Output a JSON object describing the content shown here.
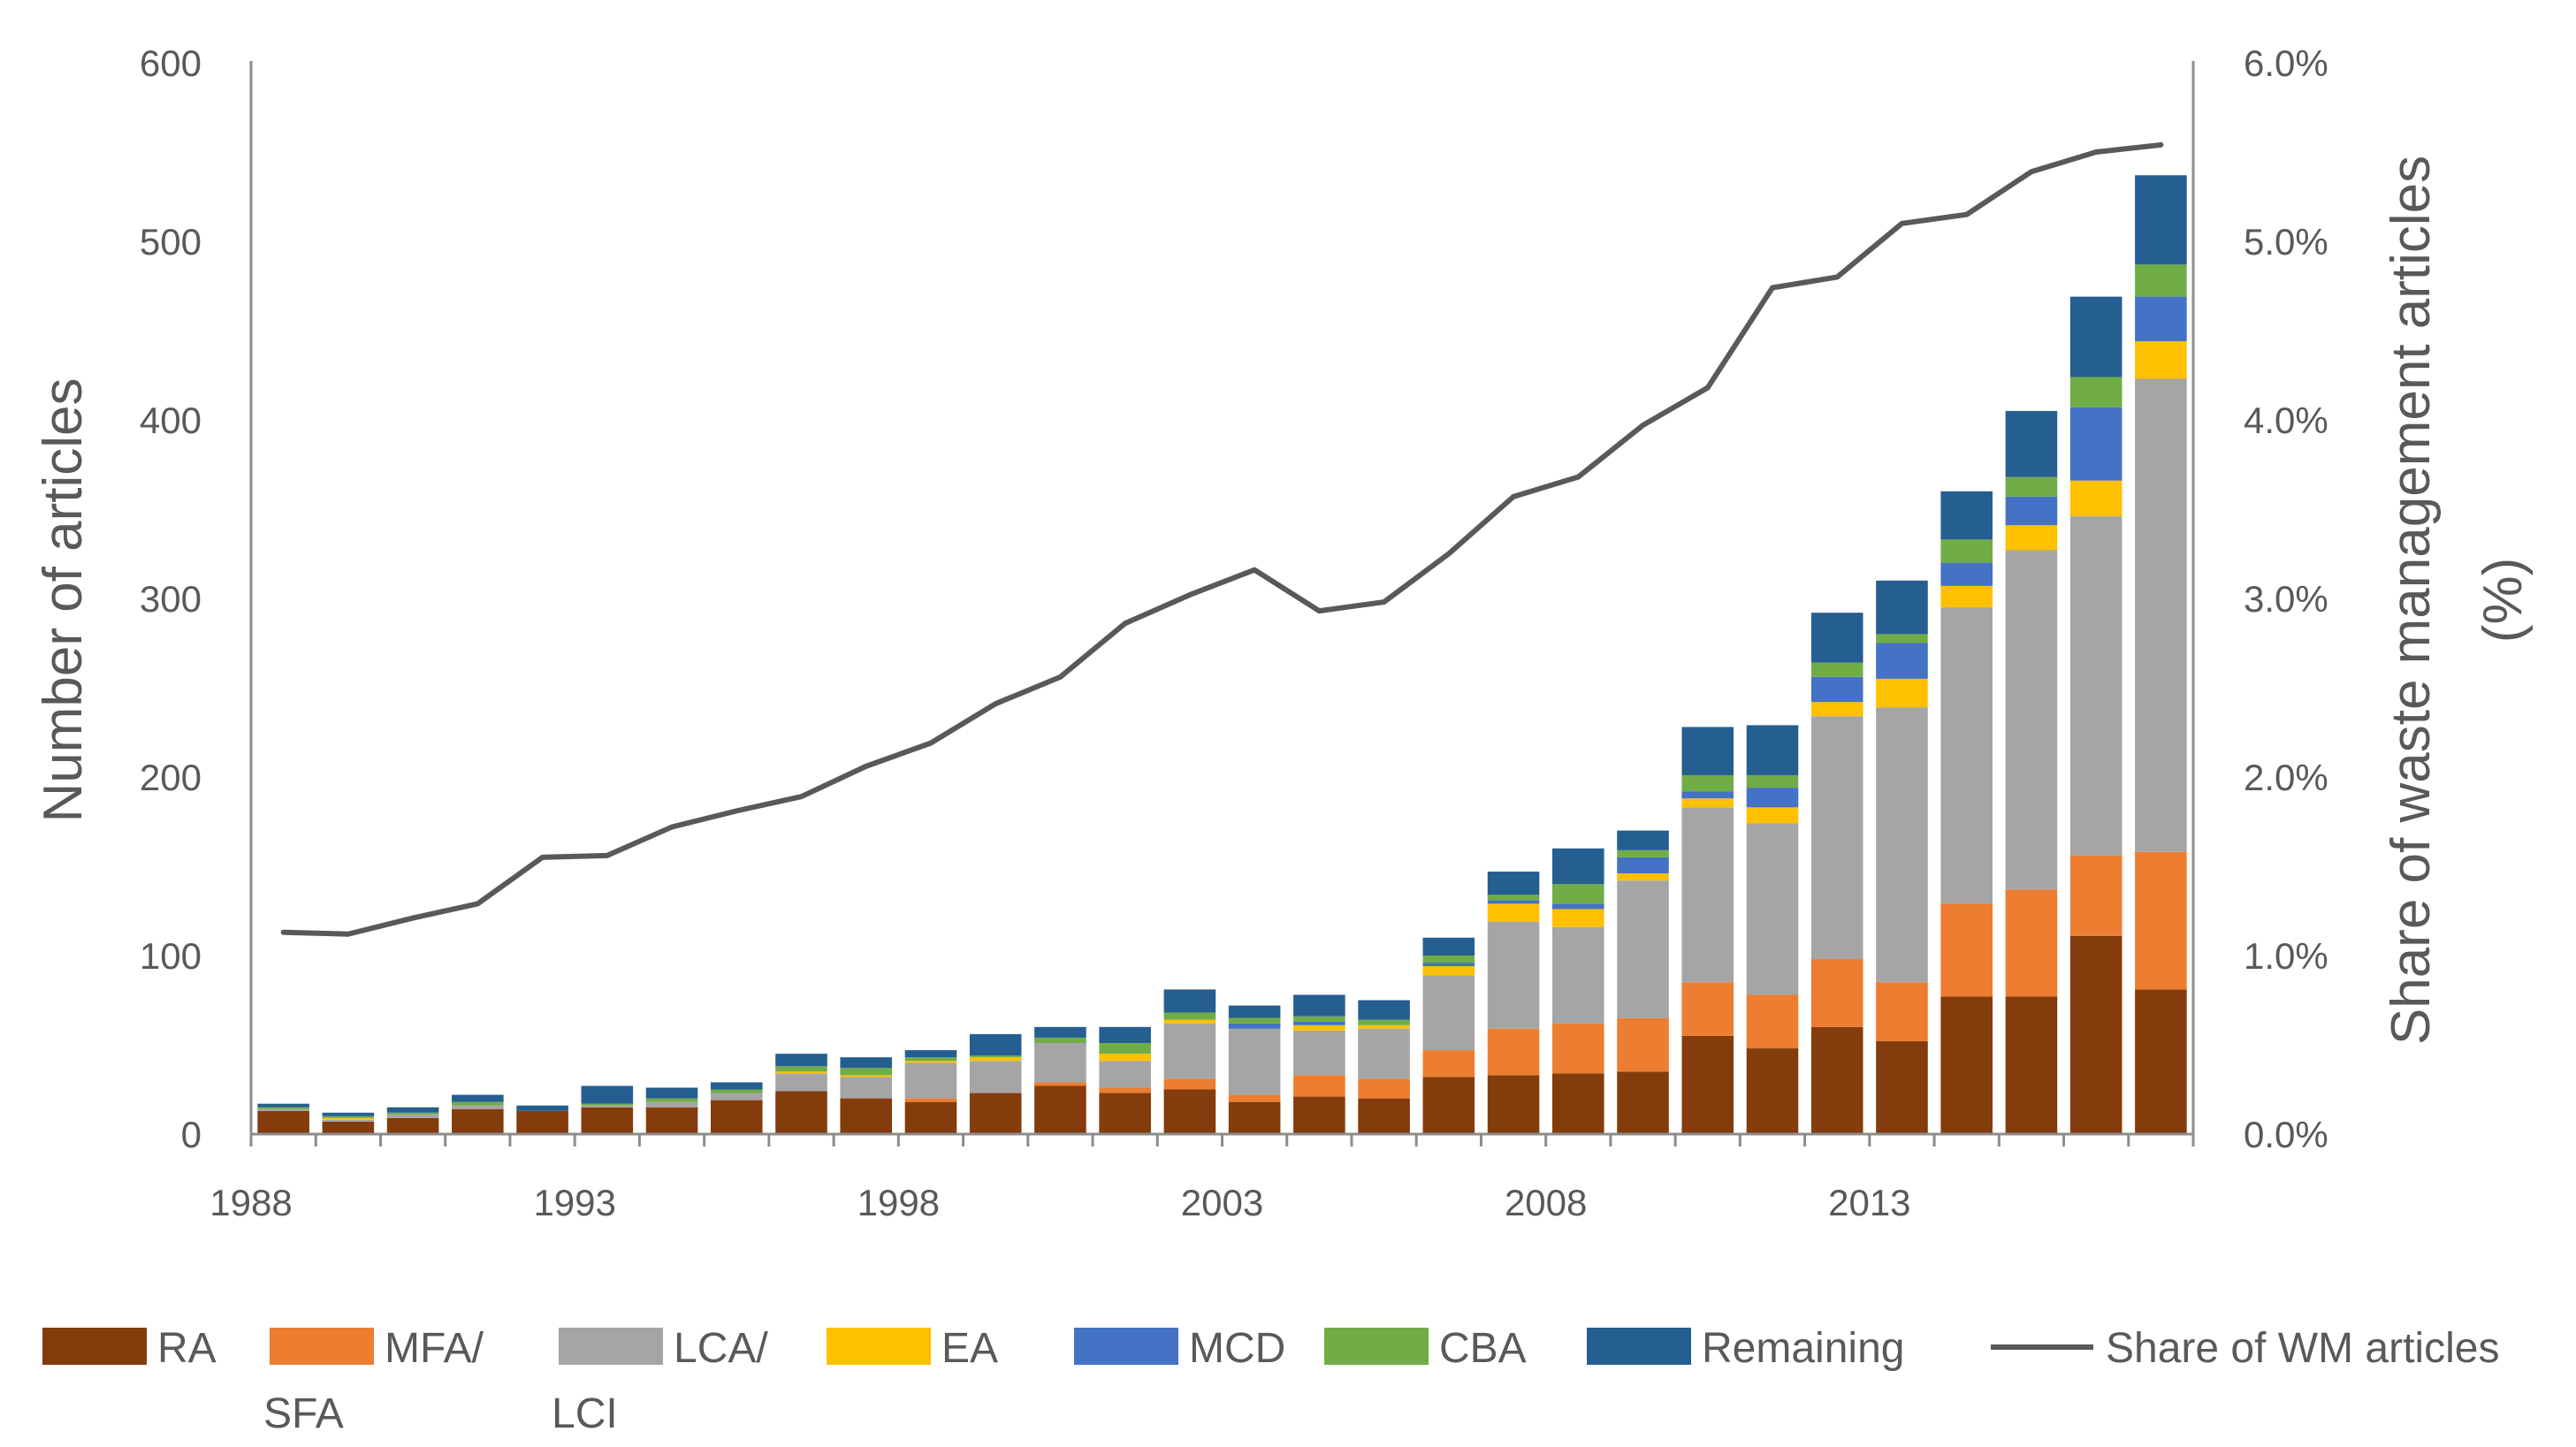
{
  "chart_data": {
    "type": "bar",
    "stacked": true,
    "years": [
      1988,
      1989,
      1990,
      1991,
      1992,
      1993,
      1994,
      1995,
      1996,
      1997,
      1998,
      1999,
      2000,
      2001,
      2002,
      2003,
      2004,
      2005,
      2006,
      2007,
      2008,
      2009,
      2010,
      2011,
      2012,
      2013,
      2014,
      2015,
      2016,
      2017
    ],
    "x_tick_labels": [
      "1988",
      "1993",
      "1998",
      "2003",
      "2008",
      "2013"
    ],
    "y_tick_labels": [
      "0",
      "100",
      "200",
      "300",
      "400",
      "500",
      "600"
    ],
    "y2_tick_labels": [
      "0.0%",
      "1.0%",
      "2.0%",
      "3.0%",
      "4.0%",
      "5.0%",
      "6.0%"
    ],
    "ylabel": "Number of articles",
    "y2label_line1": "Share of waste management articles",
    "y2label_line2": "(%)",
    "ylim": [
      0,
      600
    ],
    "y2lim": [
      0,
      6.0
    ],
    "series": [
      {
        "name": "RA",
        "color": "#843C0C",
        "values": [
          13,
          7,
          9,
          14,
          13,
          15,
          15,
          19,
          24,
          20,
          18,
          23,
          27,
          23,
          25,
          18,
          21,
          20,
          32,
          33,
          34,
          35,
          55,
          48,
          60,
          52,
          77,
          77,
          111,
          81
        ]
      },
      {
        "name": "MFA/\nSFA",
        "color": "#ED7D31",
        "values": [
          0,
          0,
          0,
          0,
          0,
          0,
          0,
          0,
          0,
          0,
          2,
          0,
          2,
          3,
          6,
          4,
          12,
          11,
          15,
          26,
          28,
          30,
          30,
          30,
          38,
          33,
          52,
          60,
          45,
          77
        ]
      },
      {
        "name": "LCA/\nLCI",
        "color": "#A5A5A5",
        "values": [
          1,
          1,
          2,
          2,
          0,
          1,
          3,
          4,
          10,
          12,
          20,
          18,
          22,
          15,
          31,
          37,
          25,
          28,
          42,
          60,
          54,
          77,
          98,
          96,
          136,
          154,
          166,
          190,
          190,
          265
        ]
      },
      {
        "name": "EA",
        "color": "#FFC000",
        "values": [
          0,
          1,
          0,
          0,
          0,
          0,
          0,
          0,
          1,
          1,
          1,
          2,
          0,
          4,
          2,
          0,
          3,
          2,
          5,
          10,
          10,
          4,
          5,
          9,
          8,
          16,
          12,
          14,
          20,
          21
        ]
      },
      {
        "name": "MCD",
        "color": "#4472C4",
        "values": [
          0,
          0,
          0,
          0,
          0,
          0,
          0,
          0,
          0,
          0,
          0,
          0,
          0,
          0,
          0,
          3,
          2,
          0,
          2,
          2,
          3,
          9,
          4,
          11,
          14,
          20,
          13,
          16,
          41,
          25
        ]
      },
      {
        "name": "CBA",
        "color": "#70AD47",
        "values": [
          1,
          1,
          1,
          2,
          0,
          1,
          2,
          2,
          3,
          4,
          2,
          1,
          3,
          6,
          4,
          3,
          3,
          3,
          4,
          3,
          11,
          4,
          9,
          7,
          8,
          5,
          13,
          11,
          17,
          18
        ]
      },
      {
        "name": "Remaining",
        "color": "#255E91",
        "values": [
          2,
          2,
          3,
          4,
          3,
          10,
          6,
          4,
          7,
          6,
          4,
          12,
          6,
          9,
          13,
          7,
          12,
          11,
          10,
          13,
          20,
          11,
          27,
          28,
          28,
          30,
          27,
          37,
          45,
          50
        ]
      }
    ],
    "line": {
      "name": "Share of WM articles",
      "color": "#595959",
      "values": [
        1.13,
        1.12,
        1.21,
        1.29,
        1.55,
        1.56,
        1.72,
        1.81,
        1.89,
        2.06,
        2.19,
        2.41,
        2.56,
        2.86,
        3.02,
        3.16,
        2.93,
        2.98,
        3.25,
        3.57,
        3.68,
        3.97,
        4.18,
        4.74,
        4.8,
        5.1,
        5.15,
        5.39,
        5.5,
        5.54
      ]
    }
  }
}
